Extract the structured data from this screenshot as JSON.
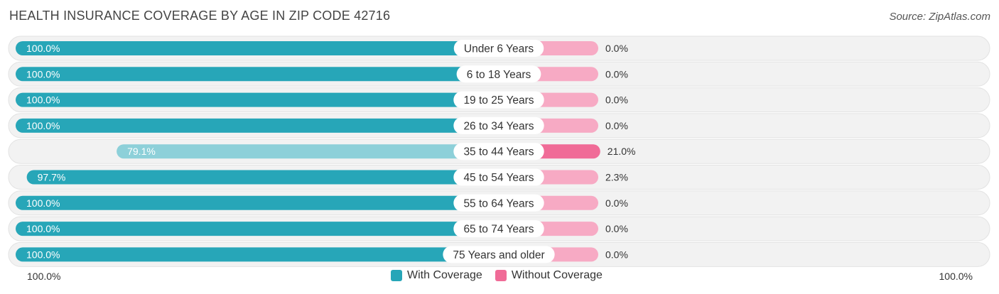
{
  "title": "HEALTH INSURANCE COVERAGE BY AGE IN ZIP CODE 42716",
  "source": "Source: ZipAtlas.com",
  "colors": {
    "with_strong": "#27a6b8",
    "with_light": "#8dd0d9",
    "without_strong": "#f06b97",
    "without_light": "#f7aac4",
    "track": "#f2f2f2"
  },
  "legend": {
    "with_label": "With Coverage",
    "without_label": "Without Coverage"
  },
  "axis": {
    "left_label": "100.0%",
    "right_label": "100.0%"
  },
  "chart_data": {
    "type": "bar",
    "orientation": "horizontal-diverging",
    "title": "HEALTH INSURANCE COVERAGE BY AGE IN ZIP CODE 42716",
    "categories": [
      "Under 6 Years",
      "6 to 18 Years",
      "19 to 25 Years",
      "26 to 34 Years",
      "35 to 44 Years",
      "45 to 54 Years",
      "55 to 64 Years",
      "65 to 74 Years",
      "75 Years and older"
    ],
    "series": [
      {
        "name": "With Coverage",
        "values": [
          100.0,
          100.0,
          100.0,
          100.0,
          79.1,
          97.7,
          100.0,
          100.0,
          100.0
        ],
        "labels": [
          "100.0%",
          "100.0%",
          "100.0%",
          "100.0%",
          "79.1%",
          "97.7%",
          "100.0%",
          "100.0%",
          "100.0%"
        ]
      },
      {
        "name": "Without Coverage",
        "values": [
          0.0,
          0.0,
          0.0,
          0.0,
          21.0,
          2.3,
          0.0,
          0.0,
          0.0
        ],
        "labels": [
          "0.0%",
          "0.0%",
          "0.0%",
          "0.0%",
          "21.0%",
          "2.3%",
          "0.0%",
          "0.0%",
          "0.0%"
        ]
      }
    ],
    "xlim": [
      0,
      100
    ],
    "legend_position": "bottom-center"
  }
}
